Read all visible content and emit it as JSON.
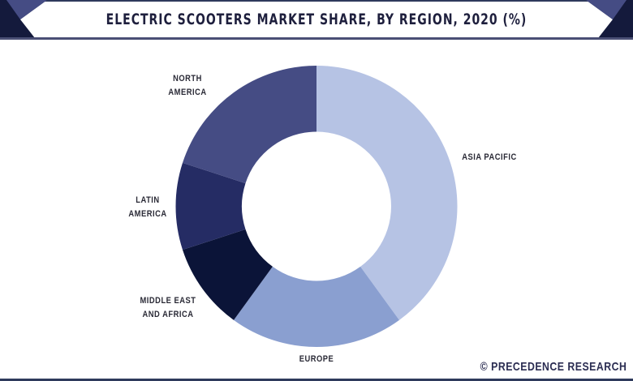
{
  "header": {
    "title": "ELECTRIC SCOOTERS MARKET SHARE, BY REGION, 2020 (%)"
  },
  "footer": {
    "copyright": "© PRECEDENCE RESEARCH"
  },
  "colors": {
    "asia_pacific": "#b6c3e4",
    "europe": "#8a9fd0",
    "middle_east_africa": "#0b1438",
    "latin_america": "#252c64",
    "north_america": "#454c84",
    "header_dark": "#141a3c",
    "header_mid": "#454c84"
  },
  "chart_data": {
    "type": "pie",
    "variant": "donut",
    "title": "ELECTRIC SCOOTERS MARKET SHARE, BY REGION, 2020 (%)",
    "categories": [
      "Asia Pacific",
      "Europe",
      "Middle East and Africa",
      "Latin America",
      "North America"
    ],
    "values": [
      40,
      20,
      10,
      10,
      20
    ],
    "unit": "%",
    "start_angle": "12 o'clock, clockwise",
    "legend": "none (direct labels)",
    "labels": {
      "asia_pacific": "ASIA PACIFIC",
      "europe": "EUROPE",
      "middle_east_africa": "MIDDLE EAST\nAND AFRICA",
      "latin_america": "LATIN\nAMERICA",
      "north_america": "NORTH\nAMERICA"
    }
  }
}
